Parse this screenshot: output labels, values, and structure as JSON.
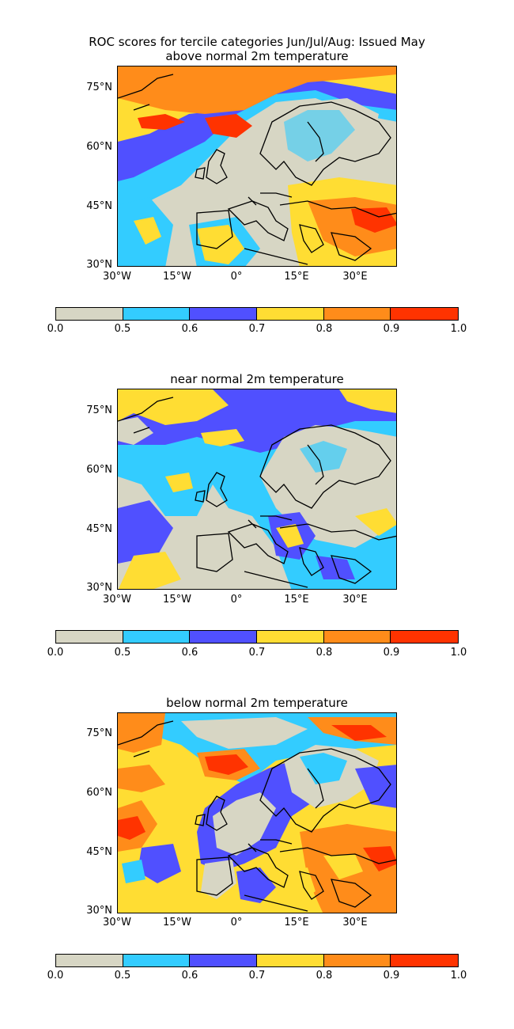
{
  "figure": {
    "title_line1": "ROC scores for tercile categories Jun/Jul/Aug: Issued May"
  },
  "panels": [
    {
      "title": "above normal 2m temperature"
    },
    {
      "title": "near normal 2m temperature"
    },
    {
      "title": "below normal 2m temperature"
    }
  ],
  "axes": {
    "lat_labels": [
      "75°N",
      "60°N",
      "45°N",
      "30°N"
    ],
    "lon_labels": [
      "30°W",
      "15°W",
      "0°",
      "15°E",
      "30°E"
    ]
  },
  "colorbar": {
    "ticks": [
      "0.0",
      "0.5",
      "0.6",
      "0.7",
      "0.8",
      "0.9",
      "1.0"
    ],
    "colors": [
      "#d7d6c4",
      "#33ccff",
      "#5050ff",
      "#ffdd33",
      "#ff8c1a",
      "#ff3300"
    ]
  },
  "chart_data": [
    {
      "type": "heatmap",
      "title": "above normal 2m temperature",
      "levels": [
        0.0,
        0.5,
        0.6,
        0.7,
        0.8,
        0.9,
        1.0
      ],
      "lat_range": [
        30,
        80
      ],
      "lon_range": [
        -30,
        40
      ]
    },
    {
      "type": "heatmap",
      "title": "near normal 2m temperature",
      "levels": [
        0.0,
        0.5,
        0.6,
        0.7,
        0.8,
        0.9,
        1.0
      ],
      "lat_range": [
        30,
        80
      ],
      "lon_range": [
        -30,
        40
      ]
    },
    {
      "type": "heatmap",
      "title": "below normal 2m temperature",
      "levels": [
        0.0,
        0.5,
        0.6,
        0.7,
        0.8,
        0.9,
        1.0
      ],
      "lat_range": [
        30,
        80
      ],
      "lon_range": [
        -30,
        40
      ]
    }
  ]
}
